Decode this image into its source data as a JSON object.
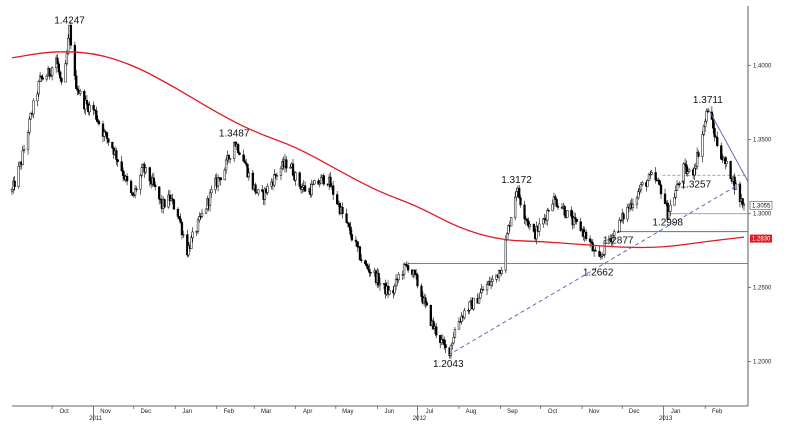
{
  "chart_data": {
    "type": "candlestick",
    "title": "",
    "xlabel": "",
    "ylabel": "",
    "ylim": [
      1.17,
      1.44
    ],
    "x_ticks": [
      {
        "label": "Oct",
        "date": "2010-10-01"
      },
      {
        "label": "Nov",
        "date": "2010-11-01"
      },
      {
        "label": "Dec",
        "date": "2010-12-01"
      },
      {
        "label": "Jan",
        "date": "2011-01-01"
      },
      {
        "label": "Feb",
        "date": "2011-02-01"
      },
      {
        "label": "Mar",
        "date": "2011-03-01"
      },
      {
        "label": "Apr",
        "date": "2011-04-01"
      },
      {
        "label": "May",
        "date": "2011-05-01"
      },
      {
        "label": "Jun",
        "date": "2011-06-01"
      },
      {
        "label": "Jul",
        "date": "2011-07-01"
      },
      {
        "label": "Aug",
        "date": "2011-08-01"
      },
      {
        "label": "Sep",
        "date": "2011-09-01"
      },
      {
        "label": "Oct",
        "date": "2011-10-01"
      },
      {
        "label": "Nov",
        "date": "2011-11-01"
      },
      {
        "label": "Dec",
        "date": "2011-12-01"
      },
      {
        "label": "Jan",
        "date": "2012-01-01"
      },
      {
        "label": "Feb",
        "date": "2012-02-01"
      }
    ],
    "year_labels": [
      {
        "label": "2011",
        "date": "2010-11-01"
      },
      {
        "label": "2012",
        "date": "2011-07-01"
      },
      {
        "label": "2013",
        "date": "2012-01-01"
      }
    ],
    "y_ticks": [
      {
        "label": "1.4000",
        "value": 1.4
      },
      {
        "label": "1.3500",
        "value": 1.35
      },
      {
        "label": "1.3000",
        "value": 1.3
      },
      {
        "label": "1.2500",
        "value": 1.25
      },
      {
        "label": "1.2000",
        "value": 1.2
      }
    ],
    "price_path": [
      [
        "2010-09-01",
        1.315
      ],
      [
        "2010-09-08",
        1.335
      ],
      [
        "2010-09-15",
        1.365
      ],
      [
        "2010-09-22",
        1.39
      ],
      [
        "2010-09-29",
        1.395
      ],
      [
        "2010-10-04",
        1.405
      ],
      [
        "2010-10-09",
        1.38
      ],
      [
        "2010-10-14",
        1.4247
      ],
      [
        "2010-10-18",
        1.39
      ],
      [
        "2010-10-24",
        1.375
      ],
      [
        "2010-11-01",
        1.37
      ],
      [
        "2010-11-08",
        1.355
      ],
      [
        "2010-11-15",
        1.345
      ],
      [
        "2010-11-22",
        1.33
      ],
      [
        "2010-11-30",
        1.31
      ],
      [
        "2010-12-08",
        1.33
      ],
      [
        "2010-12-15",
        1.32
      ],
      [
        "2010-12-22",
        1.305
      ],
      [
        "2010-12-28",
        1.31
      ],
      [
        "2011-01-03",
        1.3
      ],
      [
        "2011-01-10",
        1.275
      ],
      [
        "2011-01-17",
        1.29
      ],
      [
        "2011-01-24",
        1.305
      ],
      [
        "2011-01-31",
        1.32
      ],
      [
        "2011-02-07",
        1.33
      ],
      [
        "2011-02-14",
        1.3487
      ],
      [
        "2011-02-20",
        1.34
      ],
      [
        "2011-02-27",
        1.32
      ],
      [
        "2011-03-06",
        1.31
      ],
      [
        "2011-03-13",
        1.32
      ],
      [
        "2011-03-20",
        1.33
      ],
      [
        "2011-03-27",
        1.335
      ],
      [
        "2011-04-03",
        1.32
      ],
      [
        "2011-04-10",
        1.315
      ],
      [
        "2011-04-17",
        1.32
      ],
      [
        "2011-04-24",
        1.325
      ],
      [
        "2011-05-01",
        1.31
      ],
      [
        "2011-05-08",
        1.295
      ],
      [
        "2011-05-15",
        1.28
      ],
      [
        "2011-05-22",
        1.265
      ],
      [
        "2011-05-29",
        1.26
      ],
      [
        "2011-06-05",
        1.25
      ],
      [
        "2011-06-12",
        1.245
      ],
      [
        "2011-06-18",
        1.26
      ],
      [
        "2011-06-24",
        1.265
      ],
      [
        "2011-06-30",
        1.255
      ],
      [
        "2011-07-06",
        1.24
      ],
      [
        "2011-07-12",
        1.225
      ],
      [
        "2011-07-18",
        1.215
      ],
      [
        "2011-07-24",
        1.2043
      ],
      [
        "2011-07-30",
        1.225
      ],
      [
        "2011-08-06",
        1.235
      ],
      [
        "2011-08-13",
        1.24
      ],
      [
        "2011-08-20",
        1.25
      ],
      [
        "2011-08-27",
        1.255
      ],
      [
        "2011-09-02",
        1.265
      ],
      [
        "2011-09-07",
        1.29
      ],
      [
        "2011-09-13",
        1.3172
      ],
      [
        "2011-09-19",
        1.3
      ],
      [
        "2011-09-26",
        1.285
      ],
      [
        "2011-10-03",
        1.295
      ],
      [
        "2011-10-10",
        1.31
      ],
      [
        "2011-10-17",
        1.305
      ],
      [
        "2011-10-24",
        1.295
      ],
      [
        "2011-10-31",
        1.29
      ],
      [
        "2011-11-07",
        1.28
      ],
      [
        "2011-11-13",
        1.2662
      ],
      [
        "2011-11-19",
        1.28
      ],
      [
        "2011-11-26",
        1.2877
      ],
      [
        "2011-12-03",
        1.3
      ],
      [
        "2011-12-10",
        1.31
      ],
      [
        "2011-12-17",
        1.32
      ],
      [
        "2011-12-24",
        1.325
      ],
      [
        "2011-12-31",
        1.315
      ],
      [
        "2012-01-04",
        1.2998
      ],
      [
        "2012-01-10",
        1.315
      ],
      [
        "2012-01-16",
        1.33
      ],
      [
        "2012-01-22",
        1.3257
      ],
      [
        "2012-01-28",
        1.345
      ],
      [
        "2012-02-03",
        1.3711
      ],
      [
        "2012-02-09",
        1.35
      ],
      [
        "2012-02-15",
        1.335
      ],
      [
        "2012-02-21",
        1.325
      ],
      [
        "2012-02-27",
        1.31
      ],
      [
        "2012-03-01",
        1.3055
      ]
    ],
    "series": [
      {
        "kind": "moving-average",
        "color": "#e01b24",
        "points": [
          [
            "2010-09-01",
            1.405
          ],
          [
            "2010-10-01",
            1.4095
          ],
          [
            "2010-11-01",
            1.4085
          ],
          [
            "2010-12-01",
            1.4
          ],
          [
            "2011-01-01",
            1.385
          ],
          [
            "2011-02-01",
            1.368
          ],
          [
            "2011-03-01",
            1.355
          ],
          [
            "2011-04-01",
            1.345
          ],
          [
            "2011-05-01",
            1.33
          ],
          [
            "2011-06-01",
            1.315
          ],
          [
            "2011-07-01",
            1.305
          ],
          [
            "2011-08-01",
            1.29
          ],
          [
            "2011-09-01",
            1.282
          ],
          [
            "2011-10-01",
            1.281
          ],
          [
            "2011-11-01",
            1.279
          ],
          [
            "2011-12-01",
            1.277
          ],
          [
            "2012-01-01",
            1.277
          ],
          [
            "2012-02-01",
            1.281
          ],
          [
            "2012-03-01",
            1.284
          ]
        ]
      }
    ],
    "annotations": [
      {
        "label": "1.4247",
        "date": "2010-10-14",
        "value": 1.4247,
        "position": "above"
      },
      {
        "label": "1.3487",
        "date": "2011-02-14",
        "value": 1.3487,
        "position": "above"
      },
      {
        "label": "1.3172",
        "date": "2011-09-13",
        "value": 1.3172,
        "position": "above"
      },
      {
        "label": "1.3711",
        "date": "2012-02-03",
        "value": 1.3711,
        "position": "above"
      },
      {
        "label": "1.3257",
        "date": "2012-01-25",
        "value": 1.3257,
        "position": "below"
      },
      {
        "label": "1.2998",
        "date": "2012-01-04",
        "value": 1.2998,
        "position": "below"
      },
      {
        "label": "1.2877",
        "date": "2011-11-28",
        "value": 1.2877,
        "position": "below"
      },
      {
        "label": "1.2662",
        "date": "2011-11-13",
        "value": 1.2662,
        "position": "below"
      },
      {
        "label": "1.2043",
        "date": "2011-07-24",
        "value": 1.2043,
        "position": "below"
      }
    ],
    "trendlines": [
      {
        "kind": "support",
        "color": "#5a5ab0",
        "dash": true,
        "from": [
          "2011-07-24",
          1.2043
        ],
        "to": [
          "2012-02-27",
          1.32
        ]
      },
      {
        "kind": "resistance",
        "color": "#5a5ab0",
        "dash": false,
        "from": [
          "2012-02-03",
          1.3711
        ],
        "to": [
          "2012-03-04",
          1.3215
        ]
      }
    ],
    "horizontal_levels": [
      {
        "value": 1.3257,
        "color": "#9a9a9a",
        "dash": true,
        "from": "2011-12-31",
        "to": "2012-03-04"
      },
      {
        "value": 1.2877,
        "color": "#2e9a3c",
        "dash": false,
        "from": "2011-11-28",
        "to": "2012-03-04"
      },
      {
        "value": 1.2662,
        "color": "#2e9a3c",
        "dash": false,
        "from": "2011-06-24",
        "to": "2012-03-04"
      },
      {
        "value": 1.2998,
        "color": "#9a9a9a",
        "dash": false,
        "from": "2012-01-04",
        "to": "2012-03-04"
      }
    ],
    "right_axis_labels": [
      {
        "label": "1.3055",
        "value": 1.3055,
        "style": "outline"
      },
      {
        "label": "1.2830",
        "value": 1.283,
        "style": "red"
      }
    ],
    "grid": false,
    "legend": "none"
  }
}
